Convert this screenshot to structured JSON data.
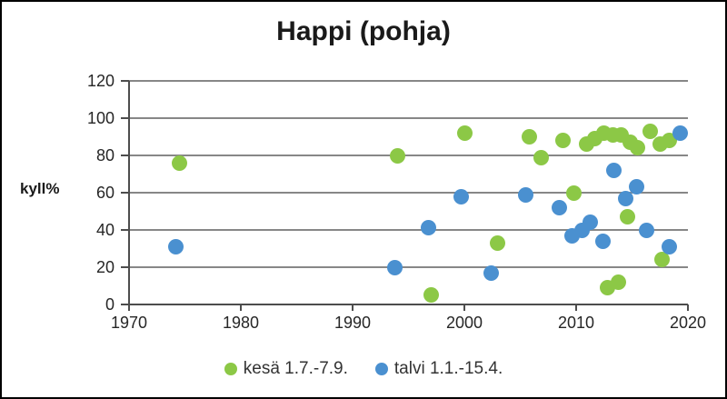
{
  "window": {
    "background": "#ffffff",
    "border_color": "#000000"
  },
  "colors": {
    "grid": "#878787",
    "axis": "#4d4d4d",
    "tick_text": "#262626",
    "title_text": "#1a1a1a",
    "kesa_green": "#8cc846",
    "talvi_blue": "#4a90d0"
  },
  "chart_data": {
    "type": "scatter",
    "title": "Happi (pohja)",
    "xlabel": "",
    "ylabel": "kyll%",
    "xlim": [
      1970,
      2020
    ],
    "ylim": [
      0,
      120
    ],
    "x_ticks": [
      1970,
      1980,
      1990,
      2000,
      2010,
      2020
    ],
    "y_ticks": [
      0,
      20,
      40,
      60,
      80,
      100,
      120
    ],
    "grid": "horizontal gridlines at every 20",
    "legend_position": "bottom-center",
    "series": [
      {
        "name": "kesä 1.7.-7.9.",
        "color": "#8cc846",
        "points": [
          {
            "x": 1974.5,
            "y": 76
          },
          {
            "x": 1994,
            "y": 80
          },
          {
            "x": 1997,
            "y": 5
          },
          {
            "x": 2000,
            "y": 92
          },
          {
            "x": 2003,
            "y": 33
          },
          {
            "x": 2005.8,
            "y": 90
          },
          {
            "x": 2006.9,
            "y": 79
          },
          {
            "x": 2008.8,
            "y": 88
          },
          {
            "x": 2009.8,
            "y": 60
          },
          {
            "x": 2010.9,
            "y": 86
          },
          {
            "x": 2011.7,
            "y": 89
          },
          {
            "x": 2012.5,
            "y": 92
          },
          {
            "x": 2012.8,
            "y": 9
          },
          {
            "x": 2013.3,
            "y": 91
          },
          {
            "x": 2013.8,
            "y": 12
          },
          {
            "x": 2014,
            "y": 91
          },
          {
            "x": 2014.6,
            "y": 47
          },
          {
            "x": 2014.8,
            "y": 87
          },
          {
            "x": 2015.5,
            "y": 84
          },
          {
            "x": 2016.6,
            "y": 93
          },
          {
            "x": 2017.5,
            "y": 86
          },
          {
            "x": 2017.7,
            "y": 24
          },
          {
            "x": 2018.3,
            "y": 88
          }
        ]
      },
      {
        "name": "talvi 1.1.-15.4.",
        "color": "#4a90d0",
        "points": [
          {
            "x": 1974.2,
            "y": 31
          },
          {
            "x": 1993.8,
            "y": 20
          },
          {
            "x": 1996.8,
            "y": 41
          },
          {
            "x": 1999.7,
            "y": 58
          },
          {
            "x": 2002.4,
            "y": 17
          },
          {
            "x": 2005.5,
            "y": 59
          },
          {
            "x": 2008.5,
            "y": 52
          },
          {
            "x": 2009.6,
            "y": 37
          },
          {
            "x": 2010.5,
            "y": 40
          },
          {
            "x": 2011.3,
            "y": 44
          },
          {
            "x": 2012.4,
            "y": 34
          },
          {
            "x": 2013.4,
            "y": 72
          },
          {
            "x": 2014.4,
            "y": 57
          },
          {
            "x": 2015.4,
            "y": 63
          },
          {
            "x": 2016.3,
            "y": 40
          },
          {
            "x": 2018.3,
            "y": 31
          },
          {
            "x": 2019.3,
            "y": 92
          }
        ]
      }
    ]
  }
}
